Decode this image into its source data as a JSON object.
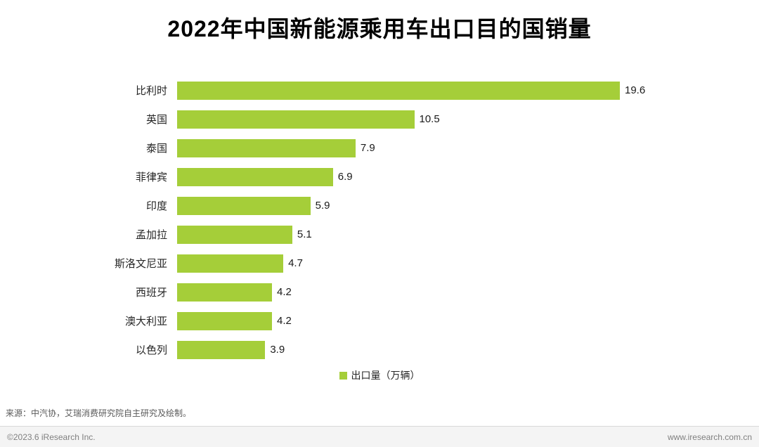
{
  "title": "2022年中国新能源乘用车出口目的国销量",
  "legend": {
    "label": "出口量（万辆）",
    "color": "#A5CE39"
  },
  "source_note": "来源：中汽协，艾瑞消费研究院自主研究及绘制。",
  "footer": {
    "copyright": "©2023.6 iResearch Inc.",
    "website": "www.iresearch.com.cn"
  },
  "chart_data": {
    "type": "bar",
    "orientation": "horizontal",
    "title": "2022年中国新能源乘用车出口目的国销量",
    "categories": [
      "比利时",
      "英国",
      "泰国",
      "菲律宾",
      "印度",
      "孟加拉",
      "斯洛文尼亚",
      "西班牙",
      "澳大利亚",
      "以色列"
    ],
    "values": [
      19.6,
      10.5,
      7.9,
      6.9,
      5.9,
      5.1,
      4.7,
      4.2,
      4.2,
      3.9
    ],
    "xlabel": "出口量（万辆）",
    "ylabel": "",
    "xlim": [
      0,
      20
    ],
    "bar_color": "#A5CE39",
    "value_labels_shown": true,
    "grid": false,
    "legend_position": "bottom-center"
  }
}
